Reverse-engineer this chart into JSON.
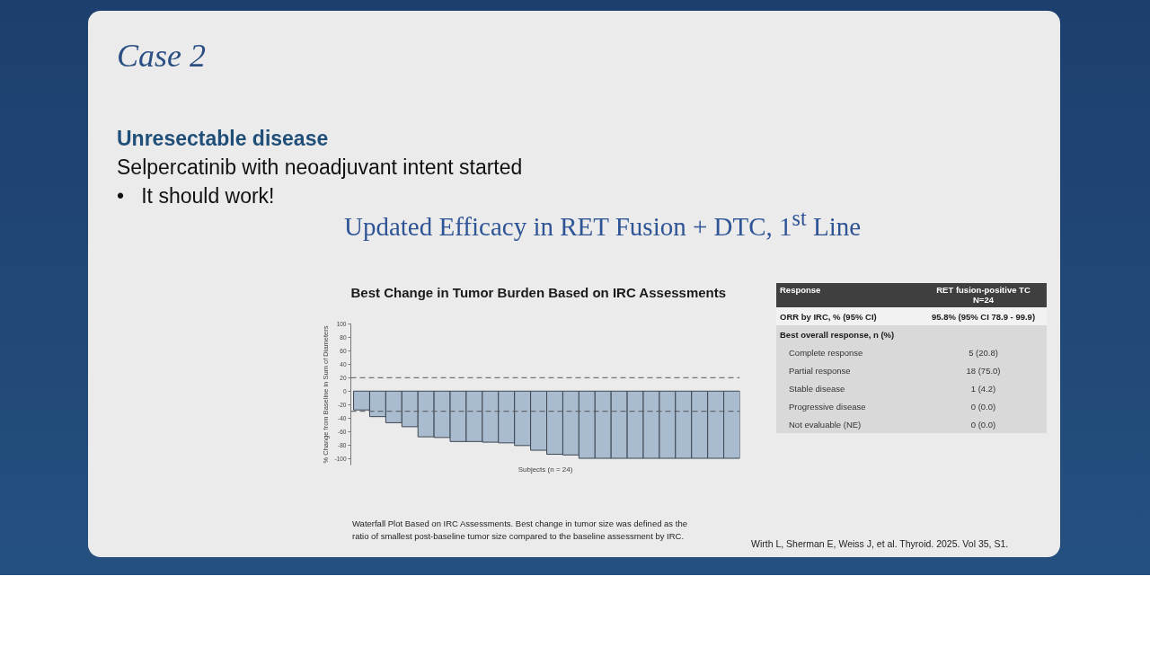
{
  "chart_data": [
    {
      "type": "bar",
      "title": "Best Change in Tumor Burden Based on IRC Assessments",
      "xlabel": "Subjects (n = 24)",
      "ylabel": "% Change from Baseline in Sum of Diameters",
      "categories": [
        null,
        null,
        null,
        null,
        null,
        null,
        null,
        null,
        null,
        null,
        null,
        null,
        null,
        null,
        null,
        null,
        null,
        null,
        null,
        null,
        null,
        null,
        null,
        null
      ],
      "values": [
        -28,
        -38,
        -47,
        -53,
        -68,
        -69,
        -75,
        -75,
        -76,
        -77,
        -81,
        -88,
        -94,
        -95,
        -100,
        -100,
        -100,
        -100,
        -100,
        -100,
        -100,
        -100,
        -100,
        -100
      ],
      "color": "#a9bbcf",
      "ylim": [
        -110,
        100
      ],
      "yticks": [
        100,
        80,
        60,
        40,
        20,
        0,
        -20,
        -40,
        -60,
        -80,
        -100
      ],
      "ref_lines": [
        {
          "axis": "y",
          "value": 20,
          "color": "#555555",
          "line_style": "dashed"
        },
        {
          "axis": "y",
          "value": -30,
          "color": "#555555",
          "line_style": "dashed"
        }
      ],
      "annotations": [
        "Case 2",
        "Unresectable disease",
        "Selpercatinib with neoadjuvant intent started",
        "•   It should work!",
        "Updated Efficacy in RET Fusion + DTC, 1$^{st}$ Line",
        "Waterfall Plot Based on IRC Assessments. Best change in tumor size was defined as the ratio of smallest post-baseline tumor size compared to the baseline assessment by IRC.",
        "Wirth L, Sherman E, Weiss J, et al. Thyroid. 2025. Vol 35, S1."
      ]
    },
    {
      "type": "other",
      "categories": [
        "Response",
        "ORR by IRC, % (95% CI)",
        "Best overall response, n (%)",
        "Complete response",
        "Partial response",
        "Stable disease",
        "Progressive disease",
        "Not evaluable (NE)"
      ],
      "value_labels": [
        "RET fusion-positive TC\nN=24",
        "95.8% (95% CI 78.9 - 99.9)",
        null,
        "5 (20.8)",
        "18 (75.0)",
        "1 (4.2)",
        "0 (0.0)",
        "0 (0.0)"
      ]
    }
  ]
}
